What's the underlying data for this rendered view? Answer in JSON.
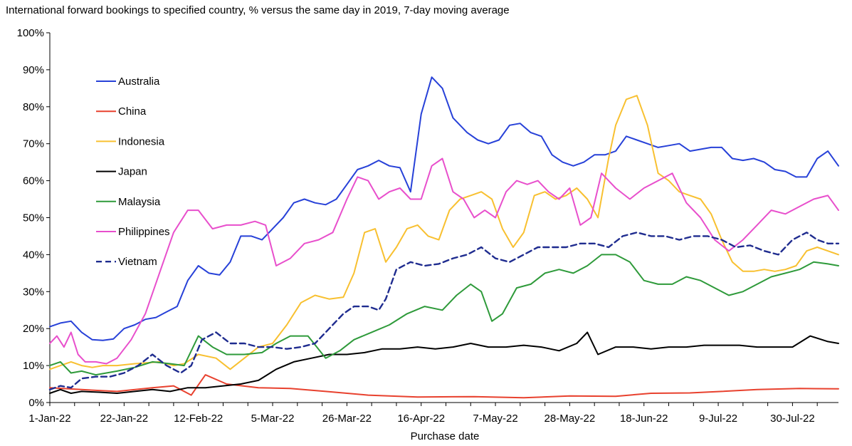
{
  "chart_data": {
    "type": "line",
    "title": "International forward bookings to specified country, % versus the same day in 2019, 7-day moving average",
    "xlabel": "Purchase date",
    "ylabel": "",
    "ylim": [
      0,
      100
    ],
    "yticks": [
      0,
      10,
      20,
      30,
      40,
      50,
      60,
      70,
      80,
      90,
      100
    ],
    "ytick_labels": [
      "0%",
      "10%",
      "20%",
      "30%",
      "40%",
      "50%",
      "60%",
      "70%",
      "80%",
      "90%",
      "100%"
    ],
    "xlim": [
      "2022-01-01",
      "2022-08-12"
    ],
    "xtick_labels": [
      "1-Jan-22",
      "22-Jan-22",
      "12-Feb-22",
      "5-Mar-22",
      "26-Mar-22",
      "16-Apr-22",
      "7-May-22",
      "28-May-22",
      "18-Jun-22",
      "9-Jul-22",
      "30-Jul-22"
    ],
    "xtick_dates": [
      "2022-01-01",
      "2022-01-22",
      "2022-02-12",
      "2022-03-05",
      "2022-03-26",
      "2022-04-16",
      "2022-05-07",
      "2022-05-28",
      "2022-06-18",
      "2022-07-09",
      "2022-07-30"
    ],
    "grid": false,
    "legend_position": "top-left",
    "series": [
      {
        "name": "Australia",
        "color": "#2741d8",
        "dash": false,
        "x": [
          "2022-01-01",
          "2022-01-04",
          "2022-01-07",
          "2022-01-10",
          "2022-01-13",
          "2022-01-16",
          "2022-01-19",
          "2022-01-22",
          "2022-01-25",
          "2022-01-28",
          "2022-01-31",
          "2022-02-03",
          "2022-02-06",
          "2022-02-09",
          "2022-02-12",
          "2022-02-15",
          "2022-02-18",
          "2022-02-21",
          "2022-02-24",
          "2022-02-27",
          "2022-03-02",
          "2022-03-05",
          "2022-03-08",
          "2022-03-11",
          "2022-03-14",
          "2022-03-17",
          "2022-03-20",
          "2022-03-23",
          "2022-03-26",
          "2022-03-29",
          "2022-04-01",
          "2022-04-04",
          "2022-04-07",
          "2022-04-10",
          "2022-04-13",
          "2022-04-16",
          "2022-04-19",
          "2022-04-22",
          "2022-04-25",
          "2022-04-27",
          "2022-04-29",
          "2022-05-02",
          "2022-05-05",
          "2022-05-08",
          "2022-05-11",
          "2022-05-14",
          "2022-05-17",
          "2022-05-20",
          "2022-05-23",
          "2022-05-26",
          "2022-05-29",
          "2022-06-01",
          "2022-06-04",
          "2022-06-07",
          "2022-06-10",
          "2022-06-13",
          "2022-06-16",
          "2022-06-19",
          "2022-06-22",
          "2022-06-25",
          "2022-06-28",
          "2022-07-01",
          "2022-07-04",
          "2022-07-07",
          "2022-07-10",
          "2022-07-13",
          "2022-07-16",
          "2022-07-19",
          "2022-07-22",
          "2022-07-25",
          "2022-07-28",
          "2022-07-31",
          "2022-08-03",
          "2022-08-06",
          "2022-08-09",
          "2022-08-12"
        ],
        "values": [
          20.5,
          21.5,
          22,
          19,
          17,
          16.8,
          17.2,
          20,
          21,
          22.5,
          23,
          24.5,
          26,
          33,
          37,
          35,
          34.5,
          38,
          45,
          45,
          44,
          47,
          50,
          54,
          55,
          54,
          53.5,
          55,
          59,
          63,
          64,
          65.5,
          64,
          63.5,
          57,
          78,
          88,
          85,
          77,
          75,
          73,
          71,
          70,
          71,
          75,
          75.5,
          73,
          72,
          67,
          65,
          64,
          65,
          67,
          67,
          68,
          72,
          71,
          70,
          69,
          69.5,
          70,
          68,
          68.5,
          69,
          69,
          66,
          65.5,
          66,
          65,
          63,
          62.5,
          61,
          61,
          66,
          68,
          64
        ]
      },
      {
        "name": "China",
        "color": "#e8412e",
        "dash": false,
        "x": [
          "2022-01-01",
          "2022-01-10",
          "2022-01-20",
          "2022-01-30",
          "2022-02-05",
          "2022-02-10",
          "2022-02-14",
          "2022-02-20",
          "2022-03-01",
          "2022-03-10",
          "2022-03-20",
          "2022-04-01",
          "2022-04-15",
          "2022-05-01",
          "2022-05-15",
          "2022-05-28",
          "2022-06-10",
          "2022-06-20",
          "2022-07-01",
          "2022-07-10",
          "2022-07-20",
          "2022-08-01",
          "2022-08-12"
        ],
        "values": [
          4,
          3.5,
          3,
          4,
          4.5,
          2,
          7.5,
          5,
          4,
          3.8,
          3,
          2,
          1.5,
          1.6,
          1.3,
          1.8,
          1.7,
          2.5,
          2.6,
          3,
          3.5,
          3.8,
          3.7
        ]
      },
      {
        "name": "Indonesia",
        "color": "#f8c030",
        "dash": false,
        "x": [
          "2022-01-01",
          "2022-01-04",
          "2022-01-07",
          "2022-01-10",
          "2022-01-13",
          "2022-01-16",
          "2022-01-20",
          "2022-01-25",
          "2022-02-01",
          "2022-02-05",
          "2022-02-08",
          "2022-02-12",
          "2022-02-17",
          "2022-02-21",
          "2022-02-25",
          "2022-03-01",
          "2022-03-05",
          "2022-03-09",
          "2022-03-13",
          "2022-03-17",
          "2022-03-21",
          "2022-03-25",
          "2022-03-28",
          "2022-03-31",
          "2022-04-03",
          "2022-04-06",
          "2022-04-09",
          "2022-04-12",
          "2022-04-15",
          "2022-04-18",
          "2022-04-21",
          "2022-04-24",
          "2022-04-27",
          "2022-04-30",
          "2022-05-03",
          "2022-05-06",
          "2022-05-09",
          "2022-05-12",
          "2022-05-15",
          "2022-05-18",
          "2022-05-21",
          "2022-05-24",
          "2022-05-27",
          "2022-05-30",
          "2022-06-02",
          "2022-06-05",
          "2022-06-08",
          "2022-06-10",
          "2022-06-13",
          "2022-06-16",
          "2022-06-19",
          "2022-06-22",
          "2022-06-25",
          "2022-06-28",
          "2022-07-01",
          "2022-07-04",
          "2022-07-07",
          "2022-07-10",
          "2022-07-13",
          "2022-07-16",
          "2022-07-19",
          "2022-07-22",
          "2022-07-25",
          "2022-07-28",
          "2022-07-31",
          "2022-08-03",
          "2022-08-06",
          "2022-08-09",
          "2022-08-12"
        ],
        "values": [
          9,
          10,
          11,
          10,
          9.5,
          10,
          10,
          10.5,
          11,
          10,
          10.5,
          13,
          12,
          9,
          12,
          15,
          16,
          21,
          27,
          29,
          28,
          28.5,
          35,
          46,
          47,
          38,
          42,
          47,
          48,
          45,
          44,
          52,
          55,
          56,
          57,
          55,
          47,
          42,
          46,
          56,
          57,
          55,
          56,
          58,
          55,
          50,
          66,
          75,
          82,
          83,
          75,
          62,
          60,
          57,
          56,
          55,
          51,
          44,
          38,
          35.5,
          35.5,
          36,
          35.5,
          36,
          37,
          41,
          42,
          41,
          40
        ]
      },
      {
        "name": "Japan",
        "color": "#000000",
        "dash": false,
        "x": [
          "2022-01-01",
          "2022-01-04",
          "2022-01-07",
          "2022-01-10",
          "2022-01-15",
          "2022-01-20",
          "2022-01-25",
          "2022-01-30",
          "2022-02-04",
          "2022-02-09",
          "2022-02-14",
          "2022-02-19",
          "2022-02-24",
          "2022-03-01",
          "2022-03-06",
          "2022-03-11",
          "2022-03-16",
          "2022-03-21",
          "2022-03-26",
          "2022-03-31",
          "2022-04-05",
          "2022-04-10",
          "2022-04-15",
          "2022-04-20",
          "2022-04-25",
          "2022-04-30",
          "2022-05-05",
          "2022-05-10",
          "2022-05-15",
          "2022-05-20",
          "2022-05-25",
          "2022-05-30",
          "2022-06-02",
          "2022-06-05",
          "2022-06-10",
          "2022-06-15",
          "2022-06-20",
          "2022-06-25",
          "2022-06-30",
          "2022-07-05",
          "2022-07-10",
          "2022-07-15",
          "2022-07-20",
          "2022-07-25",
          "2022-07-30",
          "2022-08-04",
          "2022-08-09",
          "2022-08-12"
        ],
        "values": [
          2.5,
          3.5,
          2.5,
          3,
          2.8,
          2.5,
          3,
          3.5,
          3,
          4,
          4,
          4.5,
          5,
          6,
          9,
          11,
          12,
          13,
          13,
          13.5,
          14.5,
          14.5,
          15,
          14.5,
          15,
          16,
          15,
          15,
          15.5,
          15,
          14,
          16,
          19,
          13,
          15,
          15,
          14.5,
          15,
          15,
          15.5,
          15.5,
          15.5,
          15,
          15,
          15,
          18,
          16.5,
          16
        ]
      },
      {
        "name": "Malaysia",
        "color": "#2e9a3a",
        "dash": false,
        "x": [
          "2022-01-01",
          "2022-01-04",
          "2022-01-07",
          "2022-01-10",
          "2022-01-14",
          "2022-01-20",
          "2022-01-25",
          "2022-01-30",
          "2022-02-04",
          "2022-02-08",
          "2022-02-12",
          "2022-02-16",
          "2022-02-20",
          "2022-02-25",
          "2022-03-02",
          "2022-03-06",
          "2022-03-10",
          "2022-03-15",
          "2022-03-20",
          "2022-03-24",
          "2022-03-28",
          "2022-04-02",
          "2022-04-07",
          "2022-04-12",
          "2022-04-17",
          "2022-04-22",
          "2022-04-26",
          "2022-04-30",
          "2022-05-03",
          "2022-05-06",
          "2022-05-09",
          "2022-05-13",
          "2022-05-17",
          "2022-05-21",
          "2022-05-25",
          "2022-05-29",
          "2022-06-02",
          "2022-06-06",
          "2022-06-10",
          "2022-06-14",
          "2022-06-18",
          "2022-06-22",
          "2022-06-26",
          "2022-06-30",
          "2022-07-04",
          "2022-07-08",
          "2022-07-12",
          "2022-07-16",
          "2022-07-20",
          "2022-07-24",
          "2022-07-28",
          "2022-08-01",
          "2022-08-05",
          "2022-08-09",
          "2022-08-12"
        ],
        "values": [
          10,
          11,
          8,
          8.5,
          7.5,
          8.5,
          9.5,
          11,
          10.5,
          10,
          18,
          15,
          13,
          13,
          13.5,
          16,
          18,
          18,
          12,
          14,
          17,
          19,
          21,
          24,
          26,
          25,
          29,
          32,
          30,
          22,
          24,
          31,
          32,
          35,
          36,
          35,
          37,
          40,
          40,
          38,
          33,
          32,
          32,
          34,
          33,
          31,
          29,
          30,
          32,
          34,
          35,
          36,
          38,
          37.5,
          37
        ]
      },
      {
        "name": "Philippines",
        "color": "#e84fcc",
        "dash": false,
        "x": [
          "2022-01-01",
          "2022-01-03",
          "2022-01-05",
          "2022-01-07",
          "2022-01-09",
          "2022-01-11",
          "2022-01-14",
          "2022-01-17",
          "2022-01-20",
          "2022-01-24",
          "2022-01-28",
          "2022-02-01",
          "2022-02-05",
          "2022-02-09",
          "2022-02-12",
          "2022-02-16",
          "2022-02-20",
          "2022-02-24",
          "2022-02-28",
          "2022-03-03",
          "2022-03-06",
          "2022-03-10",
          "2022-03-14",
          "2022-03-18",
          "2022-03-22",
          "2022-03-26",
          "2022-03-29",
          "2022-04-01",
          "2022-04-04",
          "2022-04-07",
          "2022-04-10",
          "2022-04-13",
          "2022-04-16",
          "2022-04-19",
          "2022-04-22",
          "2022-04-25",
          "2022-04-28",
          "2022-05-01",
          "2022-05-04",
          "2022-05-07",
          "2022-05-10",
          "2022-05-13",
          "2022-05-16",
          "2022-05-19",
          "2022-05-22",
          "2022-05-25",
          "2022-05-28",
          "2022-05-31",
          "2022-06-03",
          "2022-06-06",
          "2022-06-10",
          "2022-06-14",
          "2022-06-18",
          "2022-06-22",
          "2022-06-26",
          "2022-06-30",
          "2022-07-04",
          "2022-07-08",
          "2022-07-12",
          "2022-07-16",
          "2022-07-20",
          "2022-07-24",
          "2022-07-28",
          "2022-08-01",
          "2022-08-05",
          "2022-08-09",
          "2022-08-12"
        ],
        "values": [
          16,
          18,
          15,
          19,
          13,
          11,
          11,
          10.5,
          12,
          17,
          24,
          35,
          46,
          52,
          52,
          47,
          48,
          48,
          49,
          48,
          37,
          39,
          43,
          44,
          46,
          55,
          61,
          60,
          55,
          57,
          58,
          55,
          55,
          64,
          66,
          57,
          55,
          50,
          52,
          50,
          57,
          60,
          59,
          60,
          57,
          55,
          58,
          48,
          50,
          62,
          58,
          55,
          58,
          60,
          62,
          54,
          50,
          44,
          41,
          44,
          48,
          52,
          51,
          53,
          55,
          56,
          52
        ]
      },
      {
        "name": "Vietnam",
        "color": "#1f2c8f",
        "dash": true,
        "x": [
          "2022-01-01",
          "2022-01-04",
          "2022-01-07",
          "2022-01-10",
          "2022-01-14",
          "2022-01-18",
          "2022-01-22",
          "2022-01-26",
          "2022-01-30",
          "2022-02-03",
          "2022-02-07",
          "2022-02-10",
          "2022-02-13",
          "2022-02-17",
          "2022-02-21",
          "2022-02-25",
          "2022-03-01",
          "2022-03-05",
          "2022-03-09",
          "2022-03-13",
          "2022-03-17",
          "2022-03-21",
          "2022-03-25",
          "2022-03-28",
          "2022-04-01",
          "2022-04-04",
          "2022-04-06",
          "2022-04-09",
          "2022-04-13",
          "2022-04-17",
          "2022-04-21",
          "2022-04-25",
          "2022-04-29",
          "2022-05-03",
          "2022-05-07",
          "2022-05-11",
          "2022-05-15",
          "2022-05-19",
          "2022-05-23",
          "2022-05-27",
          "2022-05-31",
          "2022-06-04",
          "2022-06-08",
          "2022-06-12",
          "2022-06-16",
          "2022-06-20",
          "2022-06-24",
          "2022-06-28",
          "2022-07-02",
          "2022-07-06",
          "2022-07-10",
          "2022-07-14",
          "2022-07-18",
          "2022-07-22",
          "2022-07-26",
          "2022-07-30",
          "2022-08-03",
          "2022-08-06",
          "2022-08-09",
          "2022-08-12"
        ],
        "values": [
          3.5,
          4.5,
          4,
          6.5,
          7,
          7,
          8,
          10,
          13,
          10,
          8,
          10,
          17,
          19,
          16,
          16,
          15,
          15,
          14.5,
          15,
          16,
          20,
          24,
          26,
          26,
          25,
          28,
          36,
          38,
          37,
          37.5,
          39,
          40,
          42,
          39,
          38,
          40,
          42,
          42,
          42,
          43,
          43,
          42,
          45,
          46,
          45,
          45,
          44,
          45,
          45,
          44,
          42,
          42.5,
          41,
          40,
          44,
          46,
          44,
          43,
          43
        ]
      }
    ]
  }
}
